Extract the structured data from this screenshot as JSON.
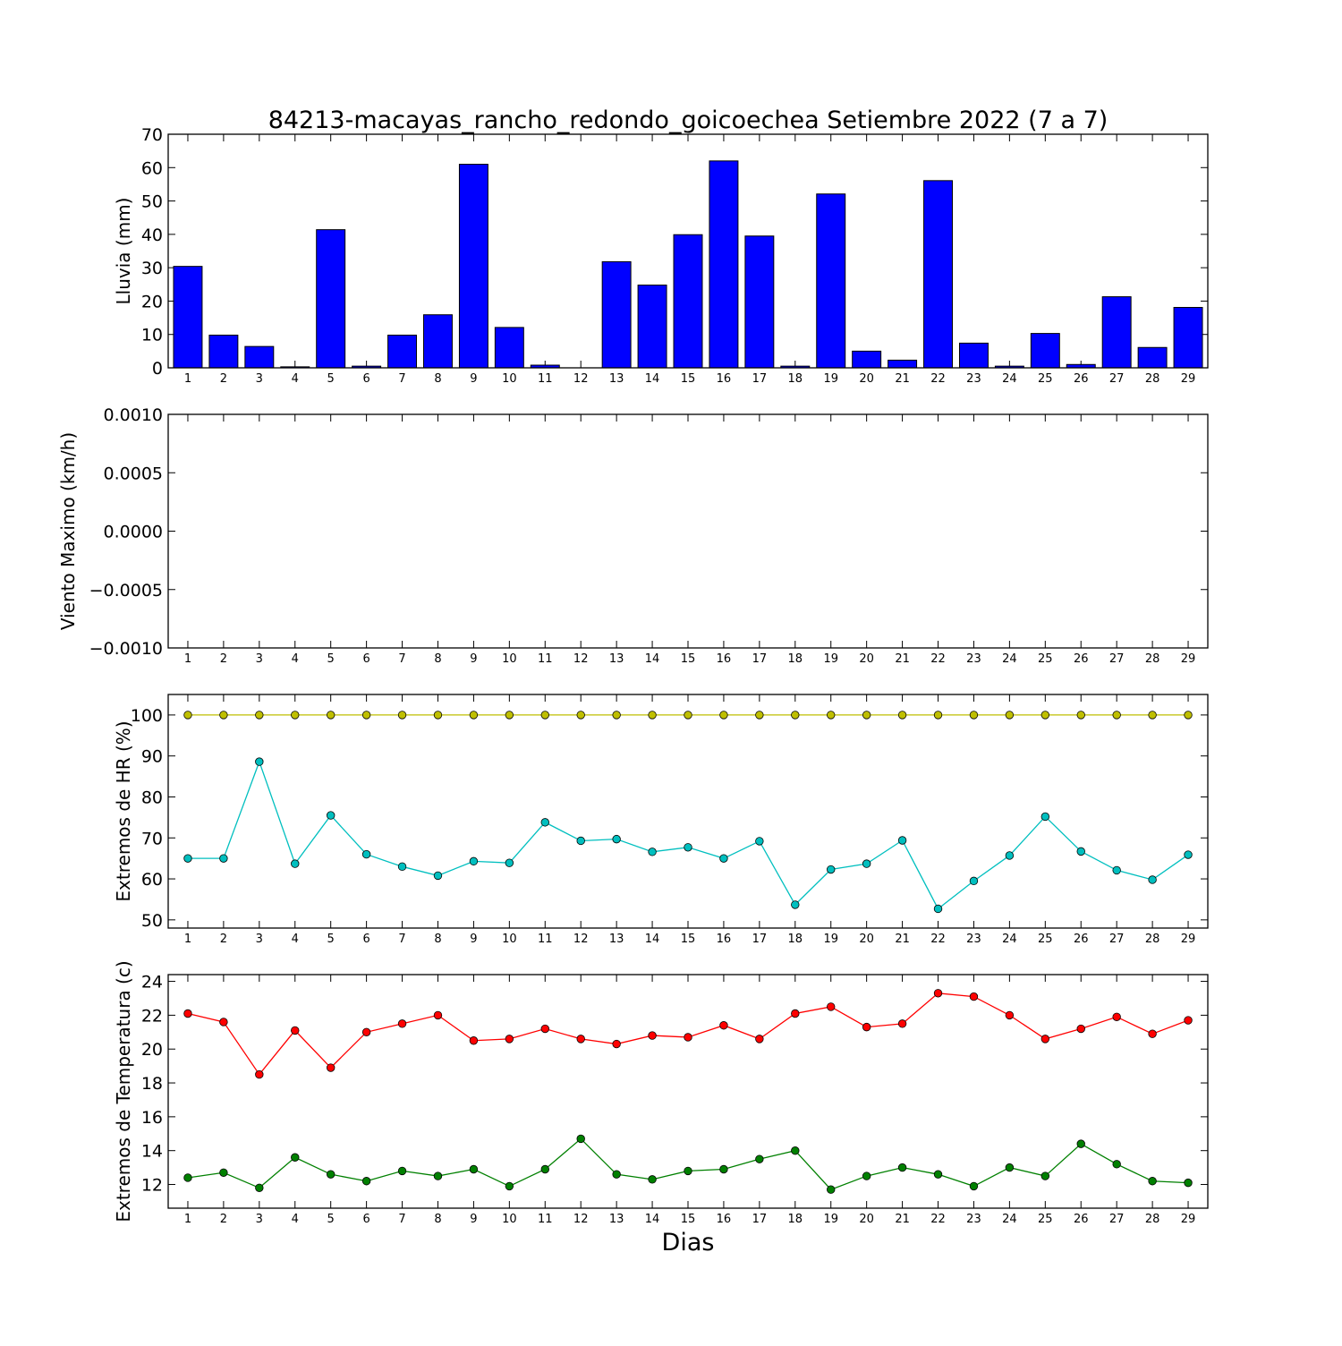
{
  "figure": {
    "title": "84213-macayas_rancho_redondo_goicoechea Setiembre 2022  (7 a 7)",
    "xlabel": "Dias"
  },
  "chart_data": [
    {
      "type": "bar",
      "ylabel": "Lluvia (mm)",
      "ylim": [
        0,
        70
      ],
      "yticks": [
        "0",
        "10",
        "20",
        "30",
        "40",
        "50",
        "60",
        "70"
      ],
      "categories": [
        "1",
        "2",
        "3",
        "4",
        "5",
        "6",
        "7",
        "8",
        "9",
        "10",
        "11",
        "12",
        "13",
        "14",
        "15",
        "16",
        "17",
        "18",
        "19",
        "20",
        "21",
        "22",
        "23",
        "24",
        "25",
        "26",
        "27",
        "28",
        "29"
      ],
      "series": [
        {
          "color": "#0000ff",
          "values": [
            30.4,
            9.8,
            6.4,
            0.3,
            41.4,
            0.5,
            9.8,
            15.9,
            61.0,
            12.1,
            0.8,
            0.0,
            31.8,
            24.8,
            39.9,
            62.0,
            39.5,
            0.5,
            52.1,
            5.0,
            2.3,
            56.1,
            7.4,
            0.5,
            10.3,
            1.0,
            21.3,
            6.1,
            18.1
          ]
        }
      ]
    },
    {
      "type": "line",
      "ylabel": "Viento Maximo (km/h)",
      "ylim": [
        -0.001,
        0.001
      ],
      "yticks": [
        "−0.0010",
        "−0.0005",
        "0.0000",
        "0.0005",
        "0.0010"
      ],
      "categories": [
        "1",
        "2",
        "3",
        "4",
        "5",
        "6",
        "7",
        "8",
        "9",
        "10",
        "11",
        "12",
        "13",
        "14",
        "15",
        "16",
        "17",
        "18",
        "19",
        "20",
        "21",
        "22",
        "23",
        "24",
        "25",
        "26",
        "27",
        "28",
        "29"
      ],
      "series": []
    },
    {
      "type": "line",
      "ylabel": "Extremos de HR (%)",
      "ylim": [
        48,
        105
      ],
      "yticks": [
        "50",
        "60",
        "70",
        "80",
        "90",
        "100"
      ],
      "categories": [
        "1",
        "2",
        "3",
        "4",
        "5",
        "6",
        "7",
        "8",
        "9",
        "10",
        "11",
        "12",
        "13",
        "14",
        "15",
        "16",
        "17",
        "18",
        "19",
        "20",
        "21",
        "22",
        "23",
        "24",
        "25",
        "26",
        "27",
        "28",
        "29"
      ],
      "series": [
        {
          "color": "#bfbf00",
          "values": [
            100,
            100,
            100,
            100,
            100,
            100,
            100,
            100,
            100,
            100,
            100,
            100,
            100,
            100,
            100,
            100,
            100,
            100,
            100,
            100,
            100,
            100,
            100,
            100,
            100,
            100,
            100,
            100,
            100
          ]
        },
        {
          "color": "#00bfbf",
          "values": [
            65,
            65,
            88.6,
            63.7,
            75.5,
            66,
            63,
            60.8,
            64.3,
            63.9,
            73.8,
            69.3,
            69.7,
            66.6,
            67.7,
            65,
            69.2,
            53.7,
            62.3,
            63.7,
            69.4,
            52.7,
            59.5,
            65.7,
            75.2,
            66.7,
            62.1,
            59.8,
            65.9
          ]
        }
      ]
    },
    {
      "type": "line",
      "ylabel": "Extremos de Temperatura (c)",
      "ylim": [
        10.6,
        24.4
      ],
      "yticks": [
        "12",
        "14",
        "16",
        "18",
        "20",
        "22",
        "24"
      ],
      "categories": [
        "1",
        "2",
        "3",
        "4",
        "5",
        "6",
        "7",
        "8",
        "9",
        "10",
        "11",
        "12",
        "13",
        "14",
        "15",
        "16",
        "17",
        "18",
        "19",
        "20",
        "21",
        "22",
        "23",
        "24",
        "25",
        "26",
        "27",
        "28",
        "29"
      ],
      "series": [
        {
          "color": "#ff0000",
          "values": [
            22.1,
            21.6,
            18.5,
            21.1,
            18.9,
            21,
            21.5,
            22,
            20.5,
            20.6,
            21.2,
            20.6,
            20.3,
            20.8,
            20.7,
            21.4,
            20.6,
            22.1,
            22.5,
            21.3,
            21.5,
            23.3,
            23.1,
            22,
            20.6,
            21.2,
            21.9,
            20.9,
            21.7
          ]
        },
        {
          "color": "#008000",
          "values": [
            12.4,
            12.7,
            11.8,
            13.6,
            12.6,
            12.2,
            12.8,
            12.5,
            12.9,
            11.9,
            12.9,
            14.7,
            12.6,
            12.3,
            12.8,
            12.9,
            13.5,
            14,
            11.7,
            12.5,
            13,
            12.6,
            11.9,
            13,
            12.5,
            14.4,
            13.2,
            12.2,
            12.1
          ]
        }
      ]
    }
  ]
}
